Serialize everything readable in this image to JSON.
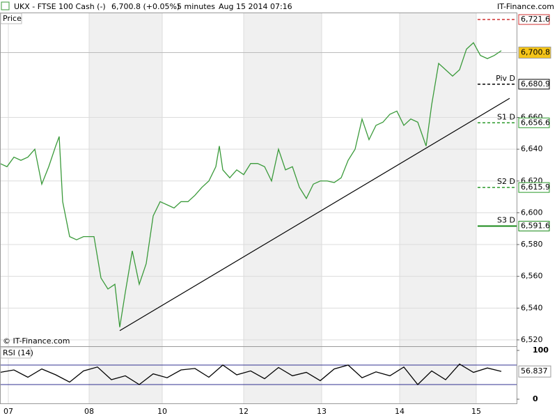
{
  "header": {
    "symbol": "UKX - FTSE 100 Cash (-)",
    "quote": "6,700.8 (+0.05%)",
    "interval": "5 minutes",
    "timestamp": "Aug 15 2014 07:16",
    "brand": "IT-Finance.com"
  },
  "chart_data": [
    {
      "type": "line",
      "panel_label": "Price",
      "copyright": "© IT-Finance.com",
      "x": [
        0,
        10,
        20,
        30,
        40,
        50,
        60,
        70,
        80,
        85,
        90,
        100,
        110,
        120,
        135,
        145,
        155,
        165,
        172,
        180,
        190,
        200,
        210,
        220,
        230,
        240,
        250,
        260,
        270,
        280,
        290,
        300,
        310,
        315,
        320,
        330,
        340,
        350,
        360,
        370,
        380,
        390,
        400,
        410,
        420,
        430,
        440,
        450,
        460,
        470,
        480,
        490,
        500,
        510,
        520,
        530,
        540,
        550,
        560,
        570,
        580,
        590,
        600,
        612,
        620,
        630,
        640,
        650,
        660,
        670,
        680,
        690,
        700,
        710,
        720
      ],
      "values": [
        6631,
        6629,
        6635,
        6633,
        6635,
        6640,
        6618,
        6629,
        6642,
        6648,
        6607,
        6585,
        6583,
        6585,
        6585,
        6559,
        6552,
        6555,
        6528,
        6550,
        6576,
        6555,
        6568,
        6598,
        6607,
        6605,
        6603,
        6607,
        6607,
        6611,
        6616,
        6620,
        6629,
        6642,
        6627,
        6622,
        6627,
        6624,
        6631,
        6631,
        6629,
        6620,
        6640,
        6627,
        6629,
        6616,
        6609,
        6618,
        6620,
        6620,
        6619,
        6622,
        6633,
        6640,
        6659,
        6646,
        6655,
        6657,
        6662,
        6664,
        6655,
        6659,
        6657,
        6642,
        6668,
        6694,
        6690,
        6686,
        6690,
        6703,
        6707,
        6699,
        6697,
        6699,
        6702
      ],
      "color": "#3a9a3a",
      "xlim": [
        0,
        742
      ],
      "xticks": [
        {
          "value": 12,
          "label": "07"
        },
        {
          "value": 128,
          "label": "08"
        },
        {
          "value": 233,
          "label": "10"
        },
        {
          "value": 350,
          "label": "12"
        },
        {
          "value": 462,
          "label": "13"
        },
        {
          "value": 574,
          "label": "14"
        },
        {
          "value": 684,
          "label": "15"
        }
      ],
      "ylim": [
        6516,
        6726
      ],
      "yticks": [
        {
          "value": 6520,
          "label": "6,520"
        },
        {
          "value": 6540,
          "label": "6,540"
        },
        {
          "value": 6560,
          "label": "6,560"
        },
        {
          "value": 6580,
          "label": "6,580"
        },
        {
          "value": 6600,
          "label": "6,600"
        },
        {
          "value": 6620,
          "label": "6,620"
        },
        {
          "value": 6640,
          "label": "6,640"
        },
        {
          "value": 6660,
          "label": "6,660"
        }
      ],
      "grid": true,
      "trendline": {
        "x": [
          172,
          732
        ],
        "values": [
          6525.8,
          6672
        ],
        "color": "#000000"
      },
      "levels": [
        {
          "value": 6721.6,
          "label": "6,721.6",
          "color": "#d03030",
          "style": "dashed"
        },
        {
          "name": "Piv D",
          "value": 6680.9,
          "label": "6,680.9",
          "color": "#000000",
          "style": "dashed"
        },
        {
          "name": "S1 D",
          "value": 6656.6,
          "label": "6,656.6",
          "color": "#2a9a2a",
          "style": "dashed"
        },
        {
          "name": "S2 D",
          "value": 6615.9,
          "label": "6,615.9",
          "color": "#2a9a2a",
          "style": "dashed"
        },
        {
          "name": "S3 D",
          "value": 6591.6,
          "label": "6,591.6",
          "color": "#1a8a1a",
          "style": "solid"
        }
      ],
      "last": {
        "value": 6700.8,
        "label": "6,700.8",
        "color": "#f5c518"
      }
    },
    {
      "type": "line",
      "panel_label": "RSI (14)",
      "x": [
        0,
        20,
        40,
        60,
        80,
        100,
        120,
        140,
        160,
        180,
        200,
        220,
        240,
        260,
        280,
        300,
        320,
        340,
        360,
        380,
        400,
        420,
        440,
        460,
        480,
        500,
        520,
        540,
        560,
        580,
        600,
        620,
        640,
        660,
        680,
        700,
        720
      ],
      "values": [
        55,
        60,
        45,
        62,
        50,
        35,
        58,
        66,
        40,
        48,
        30,
        52,
        44,
        60,
        63,
        45,
        70,
        50,
        58,
        42,
        65,
        48,
        55,
        38,
        62,
        70,
        44,
        56,
        48,
        66,
        30,
        58,
        40,
        72,
        55,
        64,
        57
      ],
      "color": "#000000",
      "xlim": [
        0,
        742
      ],
      "ylim": [
        0,
        100
      ],
      "yticks": [
        0,
        100
      ],
      "levels": [
        30,
        70
      ],
      "last": 56.837
    }
  ]
}
